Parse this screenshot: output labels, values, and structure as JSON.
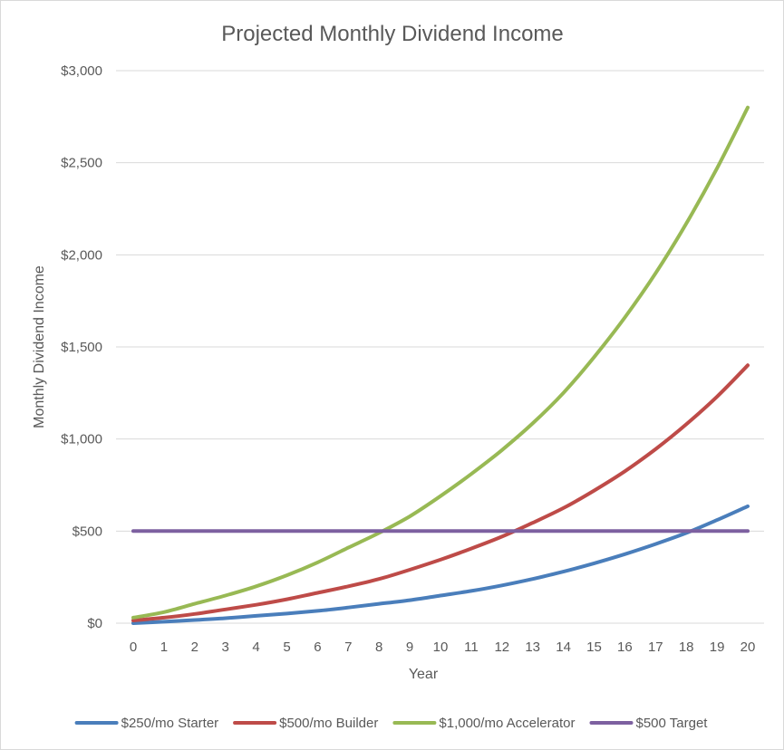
{
  "chart_data": {
    "type": "line",
    "title": "Projected Monthly Dividend Income",
    "xlabel": "Year",
    "ylabel": "Monthly Dividend Income",
    "x": [
      0,
      1,
      2,
      3,
      4,
      5,
      6,
      7,
      8,
      9,
      10,
      11,
      12,
      13,
      14,
      15,
      16,
      17,
      18,
      19,
      20
    ],
    "x_tick_labels": [
      "0",
      "1",
      "2",
      "3",
      "4",
      "5",
      "6",
      "7",
      "8",
      "9",
      "10",
      "11",
      "12",
      "13",
      "14",
      "15",
      "16",
      "17",
      "18",
      "19",
      "20"
    ],
    "ylim": [
      0,
      3000
    ],
    "y_ticks": [
      0,
      500,
      1000,
      1500,
      2000,
      2500,
      3000
    ],
    "y_tick_labels": [
      "$0",
      "$500",
      "$1,000",
      "$1,500",
      "$2,000",
      "$2,500",
      "$3,000"
    ],
    "grid": "horizontal",
    "legend": "bottom",
    "series": [
      {
        "name": "$250/mo Starter",
        "color": "#4a7ebb",
        "values": [
          0,
          8,
          17,
          27,
          40,
          52,
          67,
          85,
          105,
          125,
          150,
          175,
          205,
          240,
          280,
          325,
          375,
          430,
          490,
          560,
          635
        ]
      },
      {
        "name": "$500/mo Builder",
        "color": "#be4b48",
        "values": [
          15,
          30,
          50,
          75,
          100,
          130,
          165,
          200,
          240,
          290,
          345,
          405,
          470,
          545,
          625,
          720,
          825,
          945,
          1080,
          1230,
          1400
        ]
      },
      {
        "name": "$1,000/mo Accelerator",
        "color": "#98b954",
        "values": [
          30,
          60,
          105,
          150,
          200,
          260,
          330,
          410,
          490,
          580,
          690,
          810,
          940,
          1085,
          1250,
          1445,
          1660,
          1900,
          2170,
          2470,
          2800
        ]
      },
      {
        "name": "$500 Target",
        "color": "#7d60a0",
        "values": [
          500,
          500,
          500,
          500,
          500,
          500,
          500,
          500,
          500,
          500,
          500,
          500,
          500,
          500,
          500,
          500,
          500,
          500,
          500,
          500,
          500
        ]
      }
    ]
  }
}
